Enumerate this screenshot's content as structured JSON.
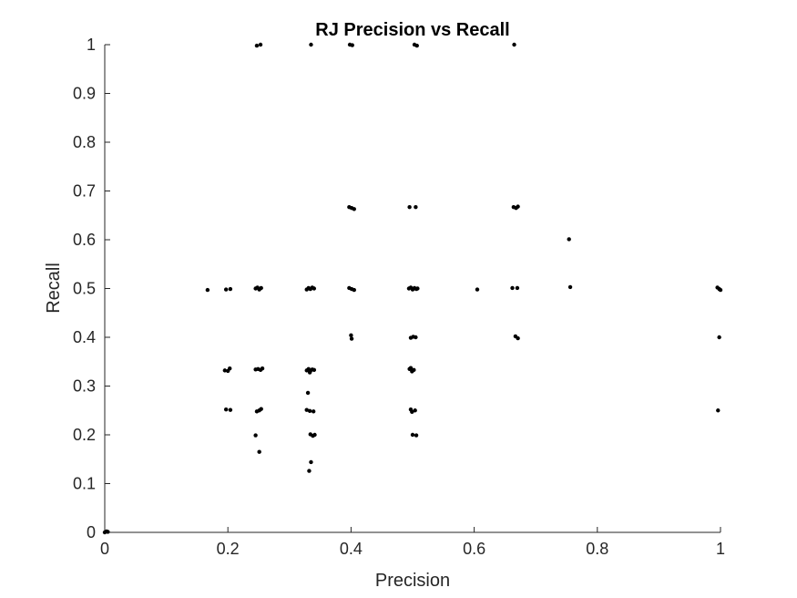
{
  "chart_data": {
    "type": "scatter",
    "title": "RJ Precision vs Recall",
    "xlabel": "Precision",
    "ylabel": "Recall",
    "xlim": [
      0,
      1
    ],
    "ylim": [
      0,
      1
    ],
    "xticks": [
      "0",
      "0.2",
      "0.4",
      "0.6",
      "0.8",
      "1"
    ],
    "yticks": [
      "0",
      "0.1",
      "0.2",
      "0.3",
      "0.4",
      "0.5",
      "0.6",
      "0.7",
      "0.8",
      "0.9",
      "1"
    ],
    "grid": false,
    "marker_color": "#000000",
    "points": [
      [
        0.0,
        0.0
      ],
      [
        0.003,
        0.002
      ],
      [
        0.005,
        0.001
      ],
      [
        0.247,
        0.998
      ],
      [
        0.253,
        1.0
      ],
      [
        0.335,
        1.0
      ],
      [
        0.398,
        1.0
      ],
      [
        0.402,
        0.999
      ],
      [
        0.503,
        1.0
      ],
      [
        0.507,
        0.998
      ],
      [
        0.665,
        1.0
      ],
      [
        0.397,
        0.667
      ],
      [
        0.401,
        0.665
      ],
      [
        0.405,
        0.663
      ],
      [
        0.495,
        0.667
      ],
      [
        0.505,
        0.667
      ],
      [
        0.664,
        0.667
      ],
      [
        0.668,
        0.665
      ],
      [
        0.671,
        0.668
      ],
      [
        0.754,
        0.601
      ],
      [
        0.167,
        0.497
      ],
      [
        0.197,
        0.498
      ],
      [
        0.204,
        0.499
      ],
      [
        0.245,
        0.5
      ],
      [
        0.248,
        0.502
      ],
      [
        0.251,
        0.498
      ],
      [
        0.254,
        0.501
      ],
      [
        0.328,
        0.498
      ],
      [
        0.331,
        0.501
      ],
      [
        0.334,
        0.499
      ],
      [
        0.337,
        0.502
      ],
      [
        0.34,
        0.5
      ],
      [
        0.397,
        0.501
      ],
      [
        0.401,
        0.499
      ],
      [
        0.405,
        0.497
      ],
      [
        0.494,
        0.5
      ],
      [
        0.497,
        0.502
      ],
      [
        0.5,
        0.498
      ],
      [
        0.503,
        0.501
      ],
      [
        0.506,
        0.499
      ],
      [
        0.508,
        0.5
      ],
      [
        0.605,
        0.498
      ],
      [
        0.662,
        0.501
      ],
      [
        0.67,
        0.501
      ],
      [
        0.756,
        0.503
      ],
      [
        0.995,
        0.502
      ],
      [
        0.998,
        0.499
      ],
      [
        1.0,
        0.497
      ],
      [
        0.4,
        0.404
      ],
      [
        0.401,
        0.397
      ],
      [
        0.497,
        0.399
      ],
      [
        0.501,
        0.401
      ],
      [
        0.505,
        0.4
      ],
      [
        0.667,
        0.402
      ],
      [
        0.671,
        0.398
      ],
      [
        0.998,
        0.4
      ],
      [
        0.195,
        0.332
      ],
      [
        0.2,
        0.331
      ],
      [
        0.203,
        0.336
      ],
      [
        0.245,
        0.334
      ],
      [
        0.249,
        0.335
      ],
      [
        0.253,
        0.333
      ],
      [
        0.256,
        0.336
      ],
      [
        0.328,
        0.332
      ],
      [
        0.331,
        0.335
      ],
      [
        0.334,
        0.331
      ],
      [
        0.337,
        0.334
      ],
      [
        0.34,
        0.333
      ],
      [
        0.333,
        0.328
      ],
      [
        0.495,
        0.335
      ],
      [
        0.499,
        0.33
      ],
      [
        0.502,
        0.333
      ],
      [
        0.497,
        0.337
      ],
      [
        0.33,
        0.286
      ],
      [
        0.197,
        0.252
      ],
      [
        0.204,
        0.251
      ],
      [
        0.247,
        0.248
      ],
      [
        0.251,
        0.25
      ],
      [
        0.254,
        0.253
      ],
      [
        0.328,
        0.251
      ],
      [
        0.333,
        0.249
      ],
      [
        0.339,
        0.248
      ],
      [
        0.497,
        0.252
      ],
      [
        0.499,
        0.247
      ],
      [
        0.504,
        0.25
      ],
      [
        0.996,
        0.25
      ],
      [
        0.245,
        0.199
      ],
      [
        0.334,
        0.201
      ],
      [
        0.338,
        0.198
      ],
      [
        0.341,
        0.2
      ],
      [
        0.5,
        0.2
      ],
      [
        0.506,
        0.199
      ],
      [
        0.251,
        0.165
      ],
      [
        0.335,
        0.144
      ],
      [
        0.332,
        0.126
      ]
    ]
  }
}
